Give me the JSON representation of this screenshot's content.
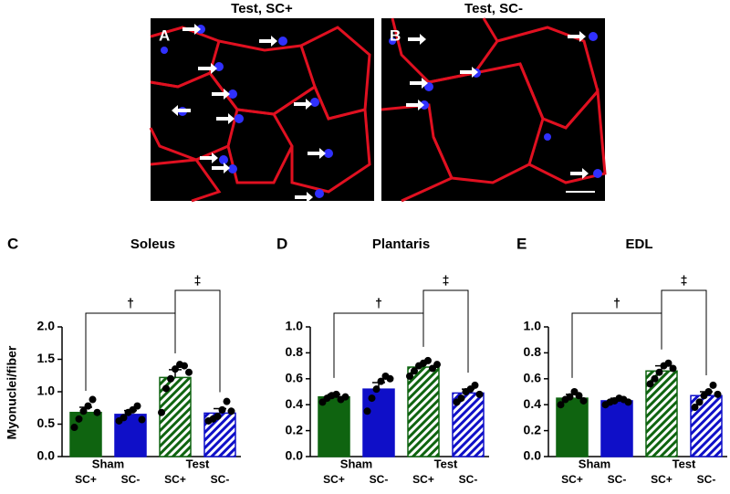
{
  "images": [
    {
      "title": "Test, SC+",
      "label": "A"
    },
    {
      "title": "Test, SC-",
      "label": "B"
    }
  ],
  "chart_data": [
    {
      "type": "bar",
      "panel": "C",
      "title": "Soleus",
      "ylabel": "Myonuclei/fiber",
      "categories": [
        "SC+",
        "SC-",
        "SC+",
        "SC-"
      ],
      "groups": [
        "Sham",
        "Test"
      ],
      "values": [
        0.68,
        0.65,
        1.22,
        0.67
      ],
      "errors": [
        0.08,
        0.06,
        0.12,
        0.07
      ],
      "points": [
        [
          0.45,
          0.58,
          0.7,
          0.78,
          0.88,
          0.68
        ],
        [
          0.55,
          0.6,
          0.68,
          0.72,
          0.78,
          0.57
        ],
        [
          0.68,
          1.05,
          1.2,
          1.35,
          1.42,
          1.4,
          1.3
        ],
        [
          0.55,
          0.58,
          0.62,
          0.72,
          0.85,
          0.7
        ]
      ],
      "colors": [
        "#0f6410",
        "#0f0fc8",
        "#0f6410",
        "#0f0fc8"
      ],
      "hatched": [
        false,
        false,
        true,
        true
      ],
      "annotations": [
        {
          "text": "†",
          "between": [
            0,
            2
          ]
        },
        {
          "text": "‡",
          "between": [
            2,
            3
          ]
        }
      ],
      "ylim": [
        0,
        2
      ],
      "yticks": [
        {
          "value": 0,
          "label": "0.0"
        },
        0.5,
        {
          "value": 1,
          "label": "1.0"
        },
        1.5,
        {
          "value": 2,
          "label": "2.0"
        }
      ]
    },
    {
      "type": "bar",
      "panel": "D",
      "title": "Plantaris",
      "categories": [
        "SC+",
        "SC-",
        "SC+",
        "SC-"
      ],
      "groups": [
        "Sham",
        "Test"
      ],
      "values": [
        0.46,
        0.52,
        0.69,
        0.49
      ],
      "errors": [
        0.02,
        0.05,
        0.03,
        0.03
      ],
      "points": [
        [
          0.42,
          0.45,
          0.47,
          0.48,
          0.44,
          0.46
        ],
        [
          0.35,
          0.45,
          0.52,
          0.58,
          0.62,
          0.6
        ],
        [
          0.62,
          0.66,
          0.7,
          0.72,
          0.74,
          0.68,
          0.71
        ],
        [
          0.42,
          0.45,
          0.5,
          0.52,
          0.55,
          0.48
        ]
      ],
      "colors": [
        "#0f6410",
        "#0f0fc8",
        "#0f6410",
        "#0f0fc8"
      ],
      "hatched": [
        false,
        false,
        true,
        true
      ],
      "annotations": [
        {
          "text": "†",
          "between": [
            0,
            2
          ]
        },
        {
          "text": "‡",
          "between": [
            2,
            3
          ]
        }
      ],
      "ylim": [
        0,
        1
      ],
      "yticks": [
        {
          "value": 0,
          "label": "0.0"
        },
        0.2,
        0.4,
        0.6,
        0.8,
        {
          "value": 1,
          "label": "1.0"
        }
      ]
    },
    {
      "type": "bar",
      "panel": "E",
      "title": "EDL",
      "categories": [
        "SC+",
        "SC-",
        "SC+",
        "SC-"
      ],
      "groups": [
        "Sham",
        "Test"
      ],
      "values": [
        0.45,
        0.43,
        0.66,
        0.47
      ],
      "errors": [
        0.03,
        0.02,
        0.04,
        0.03
      ],
      "points": [
        [
          0.4,
          0.44,
          0.46,
          0.5,
          0.47,
          0.43
        ],
        [
          0.4,
          0.42,
          0.43,
          0.45,
          0.44,
          0.42
        ],
        [
          0.56,
          0.6,
          0.65,
          0.7,
          0.72,
          0.68
        ],
        [
          0.38,
          0.42,
          0.47,
          0.5,
          0.55,
          0.48
        ]
      ],
      "colors": [
        "#0f6410",
        "#0f0fc8",
        "#0f6410",
        "#0f0fc8"
      ],
      "hatched": [
        false,
        false,
        true,
        true
      ],
      "annotations": [
        {
          "text": "†",
          "between": [
            0,
            2
          ]
        },
        {
          "text": "‡",
          "between": [
            2,
            3
          ]
        }
      ],
      "ylim": [
        0,
        1
      ],
      "yticks": [
        {
          "value": 0,
          "label": "0.0"
        },
        0.2,
        0.4,
        0.6,
        0.8,
        {
          "value": 1,
          "label": "1.0"
        }
      ]
    }
  ]
}
